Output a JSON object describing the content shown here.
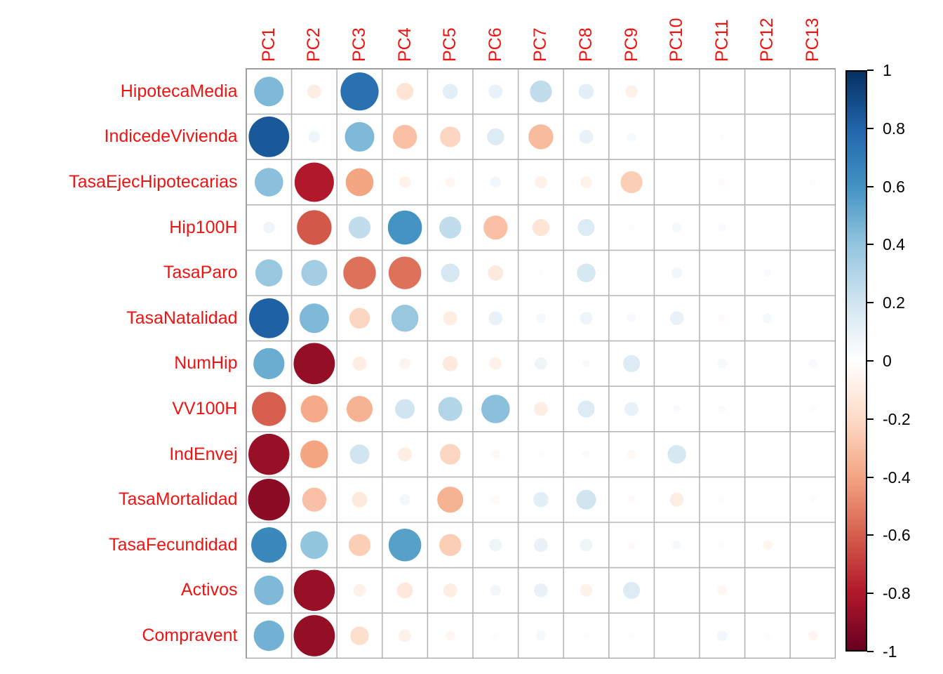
{
  "figure": {
    "background": "#FFFFFF",
    "label_color": "#EE1411",
    "grid_color": "#B7B7B7",
    "border_color": "#9E9E9E",
    "tick_label_color": "#000000"
  },
  "chart_data": {
    "type": "heatmap",
    "subtype": "correlation-circle-matrix",
    "title": "",
    "grid": true,
    "legend_position": "right",
    "value_range": [
      -1,
      1
    ],
    "columns": [
      "PC1",
      "PC2",
      "PC3",
      "PC4",
      "PC5",
      "PC6",
      "PC7",
      "PC8",
      "PC9",
      "PC10",
      "PC11",
      "PC12",
      "PC13"
    ],
    "rows": [
      "HipotecaMedia",
      "IndicedeVivienda",
      "TasaEjecHipotecarias",
      "Hip100H",
      "TasaParo",
      "TasaNatalidad",
      "NumHip",
      "VV100H",
      "IndEnvej",
      "TasaMortalidad",
      "TasaFecundidad",
      "Activos",
      "Compravent"
    ],
    "values": [
      [
        0.45,
        -0.1,
        0.75,
        -0.15,
        0.12,
        0.1,
        0.25,
        0.12,
        -0.08,
        0.01,
        0.01,
        0.0,
        0.0
      ],
      [
        0.85,
        0.07,
        0.45,
        -0.3,
        -0.22,
        0.15,
        -0.32,
        0.1,
        0.04,
        0.01,
        0.02,
        0.0,
        0.0
      ],
      [
        0.42,
        -0.8,
        -0.4,
        -0.07,
        -0.05,
        0.06,
        -0.08,
        -0.07,
        -0.25,
        0.0,
        -0.03,
        0.0,
        0.02
      ],
      [
        0.07,
        -0.62,
        0.25,
        0.6,
        0.25,
        -0.3,
        -0.15,
        0.15,
        0.02,
        0.05,
        0.03,
        0.0,
        0.0
      ],
      [
        0.38,
        0.35,
        -0.55,
        -0.55,
        0.18,
        -0.12,
        0.02,
        0.18,
        0.01,
        0.06,
        0.0,
        0.03,
        0.0
      ],
      [
        0.82,
        0.45,
        -0.22,
        0.38,
        -0.1,
        0.1,
        0.05,
        0.08,
        0.04,
        0.1,
        -0.03,
        0.05,
        0.0
      ],
      [
        0.5,
        -0.88,
        -0.1,
        -0.06,
        -0.12,
        -0.08,
        0.08,
        0.03,
        0.15,
        0.0,
        0.05,
        0.0,
        0.04
      ],
      [
        -0.6,
        -0.38,
        -0.35,
        0.2,
        0.3,
        0.42,
        -0.1,
        0.15,
        0.1,
        0.03,
        0.03,
        0.0,
        0.02
      ],
      [
        -0.87,
        -0.4,
        0.2,
        -0.1,
        -0.22,
        -0.04,
        0.02,
        0.03,
        -0.04,
        0.18,
        0.0,
        0.01,
        0.0
      ],
      [
        -0.9,
        -0.3,
        -0.12,
        0.06,
        -0.35,
        -0.04,
        0.12,
        0.2,
        -0.03,
        -0.1,
        0.02,
        0.0,
        0.02
      ],
      [
        0.65,
        0.4,
        -0.25,
        0.55,
        -0.25,
        0.08,
        0.1,
        0.08,
        -0.03,
        0.04,
        0.02,
        -0.05,
        0.01
      ],
      [
        0.45,
        -0.87,
        -0.08,
        -0.13,
        -0.1,
        0.06,
        0.1,
        -0.08,
        0.15,
        0.0,
        -0.05,
        0.0,
        0.01
      ],
      [
        0.48,
        -0.88,
        -0.18,
        -0.08,
        -0.05,
        0.02,
        0.05,
        0.02,
        0.02,
        0.0,
        0.06,
        0.02,
        -0.05
      ]
    ],
    "palette_rdbu": [
      "#67001F",
      "#B2182B",
      "#D6604D",
      "#F4A582",
      "#FDDBC7",
      "#FFFFFF",
      "#D1E5F0",
      "#92C5DE",
      "#4393C3",
      "#2166AC",
      "#053061"
    ],
    "colorbar": {
      "position": "right",
      "min": -1,
      "max": 1,
      "tick_labels": [
        "1",
        "0.8",
        "0.6",
        "0.4",
        "0.2",
        "0",
        "-0.2",
        "-0.4",
        "-0.6",
        "-0.8",
        "-1"
      ]
    }
  }
}
